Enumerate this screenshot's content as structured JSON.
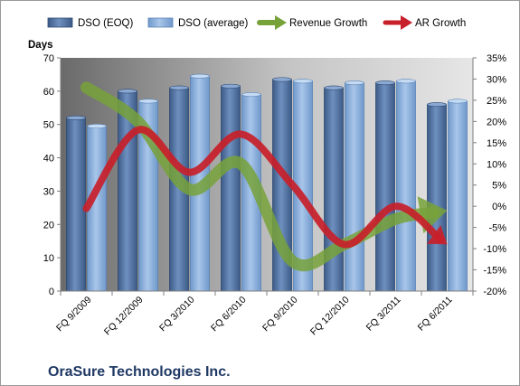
{
  "company_name": "OraSure Technologies Inc.",
  "chart_data": {
    "type": "bar",
    "categories": [
      "FQ 9/2009",
      "FQ 12/2009",
      "FQ 3/2010",
      "FQ 6/2010",
      "FQ 9/2010",
      "FQ 12/2010",
      "FQ 3/2011",
      "FQ 6/2011"
    ],
    "ylabel": "Days",
    "ylim": [
      0,
      70
    ],
    "y_ticks": [
      0,
      10,
      20,
      30,
      40,
      50,
      60,
      70
    ],
    "y2lim": [
      -20,
      35
    ],
    "y2_ticks": [
      "-20%",
      "-15%",
      "-10%",
      "-5%",
      "0%",
      "5%",
      "10%",
      "15%",
      "20%",
      "25%",
      "30%",
      "35%"
    ],
    "legend_position": "top",
    "grid": false,
    "series": [
      {
        "name": "DSO (EOQ)",
        "type": "bar",
        "axis": "left",
        "color": "#4f6e9c",
        "values": [
          52,
          60,
          61,
          61.5,
          63.5,
          61,
          62.5,
          56
        ]
      },
      {
        "name": "DSO (average)",
        "type": "bar",
        "axis": "left",
        "color": "#7ea6d6",
        "values": [
          49.5,
          57,
          64.5,
          59,
          63,
          62.5,
          63,
          57
        ]
      },
      {
        "name": "Revenue Growth",
        "type": "line",
        "axis": "right",
        "unit": "%",
        "color": "#77a23a",
        "values": [
          28,
          20,
          4,
          10,
          -13,
          -9,
          -3,
          -1
        ]
      },
      {
        "name": "AR Growth",
        "type": "line",
        "axis": "right",
        "unit": "%",
        "color": "#c8202a",
        "values": [
          -0.5,
          18,
          8,
          17,
          5,
          -9,
          0,
          -9
        ]
      }
    ]
  }
}
